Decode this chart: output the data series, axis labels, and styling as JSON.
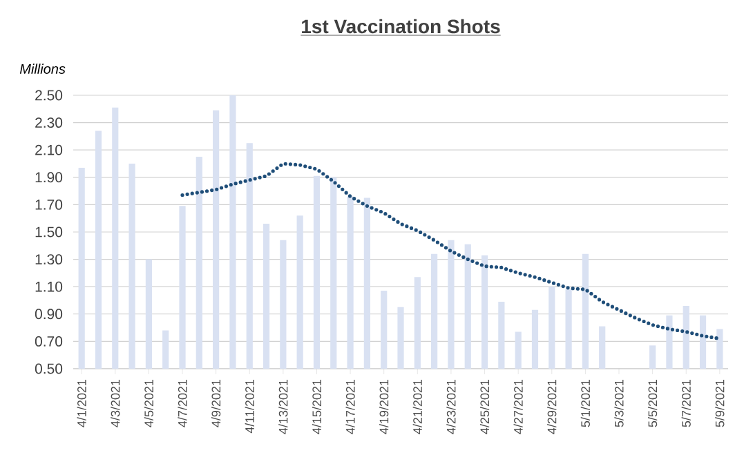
{
  "chart_data": {
    "type": "bar",
    "title": "1st Vaccination  Shots",
    "ylabel": "Millions",
    "categories": [
      "4/1/2021",
      null,
      "4/3/2021",
      null,
      "4/5/2021",
      null,
      "4/7/2021",
      null,
      "4/9/2021",
      null,
      "4/11/2021",
      null,
      "4/13/2021",
      null,
      "4/15/2021",
      null,
      "4/17/2021",
      null,
      "4/19/2021",
      null,
      "4/21/2021",
      null,
      "4/23/2021",
      null,
      "4/25/2021",
      null,
      "4/27/2021",
      null,
      "4/29/2021",
      null,
      "5/1/2021",
      null,
      "5/3/2021",
      null,
      "5/5/2021",
      null,
      "5/7/2021",
      null,
      "5/9/2021"
    ],
    "series": [
      {
        "color": "#d9e1f2",
        "values": [
          1.97,
          2.24,
          2.41,
          2.0,
          1.3,
          0.78,
          1.69,
          2.05,
          2.39,
          2.5,
          2.15,
          1.56,
          1.44,
          1.62,
          1.91,
          1.9,
          1.76,
          1.75,
          1.07,
          0.95,
          1.17,
          1.34,
          1.44,
          1.41,
          1.33,
          0.99,
          0.77,
          0.93,
          1.1,
          1.08,
          1.34,
          0.81,
          null,
          null,
          0.67,
          0.89,
          0.96,
          0.89,
          0.79
        ]
      },
      {
        "type": "line",
        "color": "#1f4e79",
        "line_style": "dotted",
        "values": [
          null,
          null,
          null,
          null,
          null,
          null,
          1.77,
          1.79,
          1.81,
          1.85,
          1.88,
          1.91,
          2.0,
          1.99,
          1.96,
          1.87,
          1.76,
          1.69,
          1.64,
          1.56,
          1.51,
          1.44,
          1.36,
          1.3,
          1.25,
          1.24,
          1.2,
          1.17,
          1.13,
          1.09,
          1.08,
          0.99,
          0.93,
          0.87,
          0.82,
          0.79,
          0.77,
          0.74,
          0.72
        ]
      }
    ],
    "ylim": [
      0.5,
      2.5
    ],
    "yticks": [
      {
        "value": 0.5,
        "label": "0.50"
      },
      {
        "value": 0.7,
        "label": "0.70"
      },
      {
        "value": 0.9,
        "label": "0.90"
      },
      {
        "value": 1.1,
        "label": "1.10"
      },
      {
        "value": 1.3,
        "label": "1.30"
      },
      {
        "value": 1.5,
        "label": "1.50"
      },
      {
        "value": 1.7,
        "label": "1.70"
      },
      {
        "value": 1.9,
        "label": "1.90"
      },
      {
        "value": 2.1,
        "label": "2.10"
      },
      {
        "value": 2.3,
        "label": "2.30"
      },
      {
        "value": 2.5,
        "label": "2.50"
      }
    ],
    "grid": "y"
  }
}
